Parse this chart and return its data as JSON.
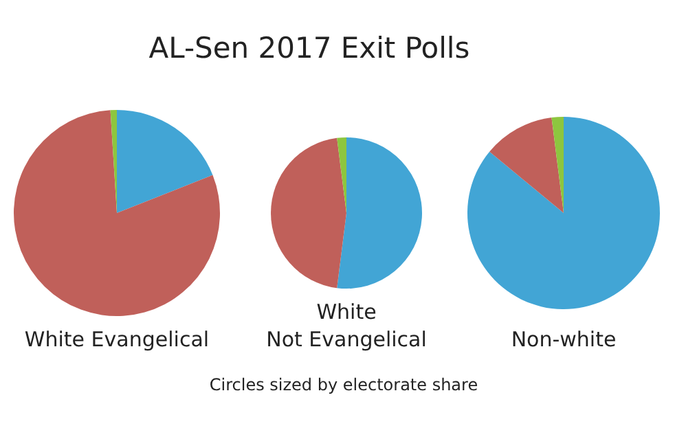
{
  "chart_data": [
    {
      "type": "pie",
      "title": "AL-Sen 2017 Exit Polls",
      "xlabel": "White Evangelical",
      "annotations": [
        "Circles sized by electorate share"
      ],
      "categories": [
        null,
        null,
        null
      ],
      "values": [
        19,
        80,
        1
      ],
      "colors": [
        "#42a5d5",
        "#c0605a",
        "#8dc63f"
      ]
    },
    {
      "type": "pie",
      "xlabel": "White\nNot Evangelical",
      "categories": [
        null,
        null,
        null
      ],
      "values": [
        52,
        46,
        2
      ],
      "colors": [
        "#42a5d5",
        "#c0605a",
        "#8dc63f"
      ]
    },
    {
      "type": "pie",
      "xlabel": "Non-white",
      "categories": [
        null,
        null,
        null
      ],
      "values": [
        86,
        12,
        2
      ],
      "colors": [
        "#42a5d5",
        "#c0605a",
        "#8dc63f"
      ]
    }
  ]
}
